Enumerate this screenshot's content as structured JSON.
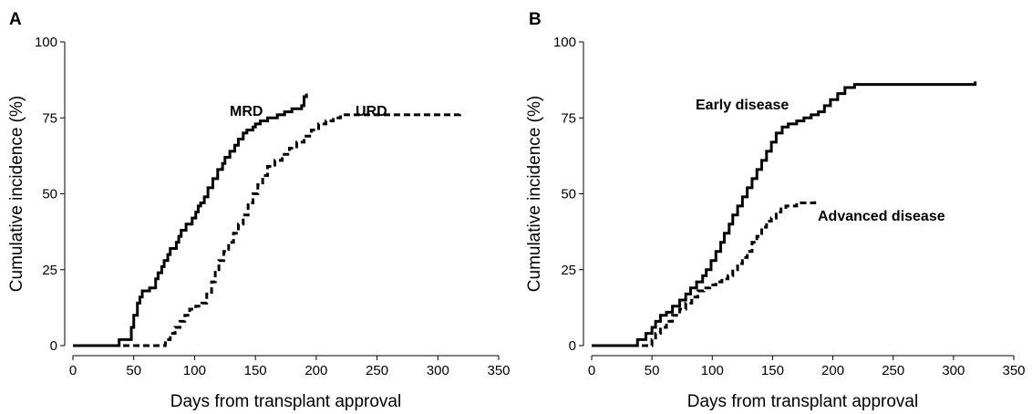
{
  "chart_data": [
    {
      "type": "line",
      "panel_label": "A",
      "xlabel": "Days from transplant approval",
      "ylabel": "Cumulative incidence (%)",
      "xlim": [
        0,
        350
      ],
      "ylim": [
        0,
        100
      ],
      "xticks": [
        0,
        50,
        100,
        150,
        200,
        250,
        300,
        350
      ],
      "yticks": [
        0,
        25,
        50,
        75,
        100
      ],
      "step": true,
      "grid": false,
      "legend": "none",
      "annotations": [
        {
          "text": "MRD",
          "series": "MRD"
        },
        {
          "text": "URD",
          "series": "URD"
        }
      ],
      "series": [
        {
          "name": "MRD",
          "line_style": "solid",
          "x": [
            0,
            38,
            48,
            50,
            53,
            55,
            57,
            63,
            68,
            70,
            73,
            75,
            78,
            80,
            85,
            87,
            89,
            93,
            98,
            101,
            103,
            105,
            108,
            111,
            115,
            119,
            123,
            125,
            129,
            133,
            136,
            140,
            143,
            148,
            150,
            154,
            160,
            168,
            174,
            180,
            188,
            190,
            192
          ],
          "y": [
            0,
            2,
            6,
            10,
            14,
            16,
            18,
            19,
            22,
            24,
            26,
            28,
            30,
            32,
            34,
            36,
            38,
            40,
            42,
            44,
            46,
            47,
            49,
            52,
            55,
            58,
            60,
            62,
            64,
            66,
            68,
            70,
            71,
            72,
            73,
            74,
            75,
            76,
            77,
            78,
            79,
            82,
            83
          ]
        },
        {
          "name": "URD",
          "line_style": "dashed",
          "x": [
            0,
            76,
            80,
            84,
            88,
            92,
            96,
            101,
            106,
            110,
            114,
            117,
            120,
            124,
            128,
            132,
            136,
            140,
            144,
            148,
            152,
            156,
            160,
            166,
            172,
            178,
            184,
            190,
            196,
            202,
            208,
            214,
            220,
            230,
            250,
            280,
            300,
            318
          ],
          "y": [
            0,
            2,
            4,
            6,
            8,
            10,
            12,
            13,
            14,
            17,
            21,
            25,
            28,
            31,
            34,
            37,
            40,
            43,
            47,
            50,
            53,
            56,
            59,
            61,
            63,
            65,
            67,
            69,
            71,
            73,
            74,
            75,
            76,
            76,
            76,
            76,
            76,
            77
          ]
        }
      ]
    },
    {
      "type": "line",
      "panel_label": "B",
      "xlabel": "Days from transplant approval",
      "ylabel": "Cumulative incidence (%)",
      "xlim": [
        0,
        350
      ],
      "ylim": [
        0,
        100
      ],
      "xticks": [
        0,
        50,
        100,
        150,
        200,
        250,
        300,
        350
      ],
      "yticks": [
        0,
        25,
        50,
        75,
        100
      ],
      "step": true,
      "grid": false,
      "legend": "none",
      "annotations": [
        {
          "text": "Early disease",
          "series": "Early disease"
        },
        {
          "text": "Advanced disease",
          "series": "Advanced disease"
        }
      ],
      "series": [
        {
          "name": "Early disease",
          "line_style": "solid",
          "x": [
            0,
            38,
            45,
            50,
            53,
            57,
            62,
            67,
            73,
            78,
            82,
            87,
            92,
            95,
            99,
            103,
            107,
            110,
            114,
            117,
            121,
            125,
            129,
            133,
            137,
            141,
            145,
            149,
            153,
            158,
            163,
            170,
            176,
            182,
            188,
            193,
            198,
            204,
            210,
            218,
            240,
            260,
            290,
            318
          ],
          "y": [
            0,
            2,
            4,
            6,
            8,
            10,
            11,
            13,
            15,
            17,
            19,
            21,
            23,
            25,
            28,
            31,
            34,
            37,
            40,
            43,
            46,
            49,
            52,
            55,
            58,
            61,
            64,
            67,
            70,
            72,
            73,
            74,
            75,
            76,
            77,
            79,
            81,
            83,
            85,
            86,
            86,
            86,
            86,
            87
          ]
        },
        {
          "name": "Advanced disease",
          "line_style": "dashed",
          "x": [
            0,
            50,
            53,
            57,
            62,
            67,
            73,
            78,
            83,
            88,
            93,
            98,
            103,
            108,
            113,
            117,
            121,
            125,
            129,
            133,
            137,
            141,
            145,
            149,
            153,
            157,
            161,
            170,
            178,
            185
          ],
          "y": [
            0,
            2,
            4,
            6,
            8,
            10,
            12,
            14,
            16,
            18,
            19,
            20,
            21,
            22,
            23,
            25,
            27,
            29,
            31,
            34,
            36,
            39,
            41,
            42,
            44,
            45,
            46,
            47,
            47,
            48
          ]
        }
      ]
    }
  ]
}
